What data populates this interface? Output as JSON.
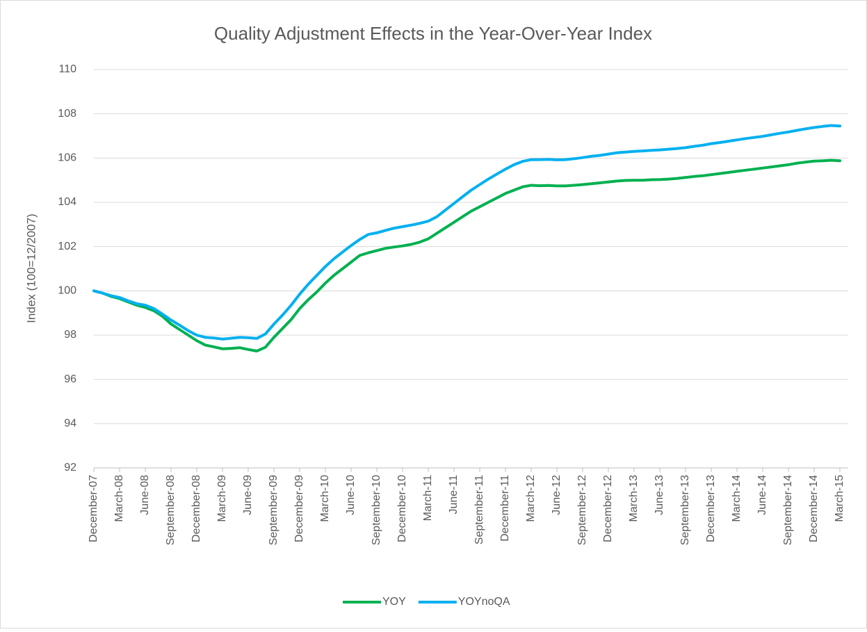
{
  "chart_data": {
    "type": "line",
    "title": "Quality Adjustment Effects in the Year-Over-Year Index",
    "y_label": "Index (100=12/2007)",
    "categories": [
      "December-07",
      null,
      null,
      "March-08",
      null,
      null,
      "June-08",
      null,
      null,
      "September-08",
      null,
      null,
      "December-08",
      null,
      null,
      "March-09",
      null,
      null,
      "June-09",
      null,
      null,
      "September-09",
      null,
      null,
      "December-09",
      null,
      null,
      "March-10",
      null,
      null,
      "June-10",
      null,
      null,
      "September-10",
      null,
      null,
      "December-10",
      null,
      null,
      "March-11",
      null,
      null,
      "June-11",
      null,
      null,
      "September-11",
      null,
      null,
      "December-11",
      null,
      null,
      "March-12",
      null,
      null,
      "June-12",
      null,
      null,
      "September-12",
      null,
      null,
      "December-12",
      null,
      null,
      "March-13",
      null,
      null,
      "June-13",
      null,
      null,
      "September-13",
      null,
      null,
      "December-13",
      null,
      null,
      "March-14",
      null,
      null,
      "June-14",
      null,
      null,
      "September-14",
      null,
      null,
      "December-14",
      null,
      null,
      "March-15"
    ],
    "series": [
      {
        "name": "YOY",
        "color": "#00b050",
        "values": [
          100,
          99.9,
          99.75,
          99.65,
          99.5,
          99.35,
          99.25,
          99.1,
          98.85,
          98.5,
          98.25,
          98.0,
          97.75,
          97.55,
          97.47,
          97.38,
          97.4,
          97.43,
          97.35,
          97.28,
          97.45,
          97.9,
          98.3,
          98.7,
          99.2,
          99.6,
          99.95,
          100.35,
          100.7,
          101.0,
          101.3,
          101.6,
          101.72,
          101.82,
          101.92,
          101.98,
          102.03,
          102.1,
          102.2,
          102.35,
          102.6,
          102.85,
          103.1,
          103.35,
          103.6,
          103.8,
          104.0,
          104.2,
          104.4,
          104.55,
          104.7,
          104.77,
          104.75,
          104.76,
          104.74,
          104.74,
          104.77,
          104.8,
          104.84,
          104.88,
          104.92,
          104.96,
          104.99,
          105.0,
          105.0,
          105.02,
          105.03,
          105.05,
          105.08,
          105.12,
          105.17,
          105.2,
          105.25,
          105.3,
          105.35,
          105.4,
          105.45,
          105.5,
          105.55,
          105.6,
          105.65,
          105.7,
          105.77,
          105.82,
          105.86,
          105.88,
          105.9,
          105.88
        ]
      },
      {
        "name": "YOYnoQA",
        "color": "#00b0f0",
        "values": [
          100,
          99.9,
          99.78,
          99.7,
          99.55,
          99.42,
          99.35,
          99.2,
          98.95,
          98.68,
          98.45,
          98.2,
          98.0,
          97.9,
          97.87,
          97.82,
          97.86,
          97.9,
          97.88,
          97.85,
          98.05,
          98.5,
          98.9,
          99.35,
          99.85,
          100.3,
          100.7,
          101.1,
          101.45,
          101.75,
          102.05,
          102.32,
          102.55,
          102.62,
          102.73,
          102.83,
          102.9,
          102.97,
          103.05,
          103.15,
          103.35,
          103.65,
          103.95,
          104.25,
          104.55,
          104.8,
          105.05,
          105.28,
          105.5,
          105.7,
          105.85,
          105.93,
          105.93,
          105.94,
          105.92,
          105.93,
          105.97,
          106.02,
          106.08,
          106.12,
          106.18,
          106.24,
          106.27,
          106.3,
          106.32,
          106.35,
          106.37,
          106.4,
          106.43,
          106.47,
          106.53,
          106.58,
          106.65,
          106.7,
          106.76,
          106.82,
          106.88,
          106.93,
          106.98,
          107.05,
          107.12,
          107.18,
          107.25,
          107.32,
          107.38,
          107.43,
          107.47,
          107.45
        ]
      }
    ],
    "ylim": [
      92,
      110
    ],
    "yticks": [
      92,
      94,
      96,
      98,
      100,
      102,
      104,
      106,
      108,
      110
    ],
    "grid": true,
    "legend": "bottom"
  }
}
